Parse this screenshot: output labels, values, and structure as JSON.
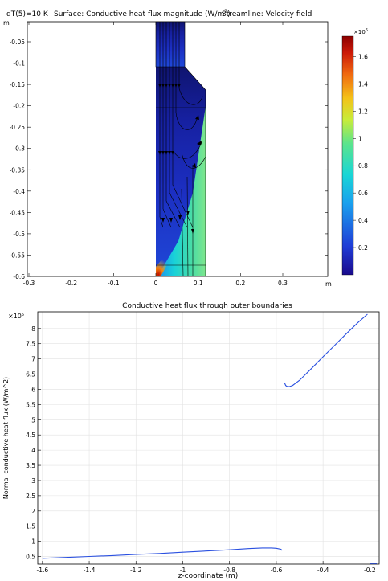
{
  "top_plot": {
    "header_left": "dT(5)=10 K",
    "header_surface": "Surface: Conductive heat flux magnitude (W/m",
    "header_sup": "2",
    "header_close": ")",
    "header_stream": "Streamline: Velocity field",
    "axis_unit_y": "m",
    "axis_unit_x": "m",
    "y_ticks": [
      "-0.05",
      "-0.1",
      "-0.15",
      "-0.2",
      "-0.25",
      "-0.3",
      "-0.35",
      "-0.4",
      "-0.45",
      "-0.5",
      "-0.55",
      "-0.6"
    ],
    "x_ticks": [
      "-0.3",
      "-0.2",
      "-0.1",
      "0",
      "0.1",
      "0.2",
      "0.3"
    ],
    "colorbar": {
      "multiplier": "×10",
      "multiplier_exp": "6",
      "ticks": [
        "1.6",
        "1.4",
        "1.2",
        "1",
        "0.8",
        "0.6",
        "0.4",
        "0.2"
      ],
      "range": [
        0,
        1.75
      ]
    },
    "colors": {
      "deep_blue": "#1a1aa8",
      "cyan": "#18d2d8",
      "green": "#6ee68a",
      "red": "#b00000"
    }
  },
  "chart_data": [
    {
      "type": "line",
      "title": "Conductive heat flux through outer boundaries",
      "xlabel": "z-coordinate (m)",
      "ylabel": "Normal conductive heat flux (W/m^2)",
      "y_multiplier": "×10",
      "y_multiplier_exp": "5",
      "xlim": [
        -1.62,
        -0.16
      ],
      "ylim": [
        0.25,
        8.55
      ],
      "grid": true,
      "x_ticks": [
        "-1.6",
        "-1.4",
        "-1.2",
        "-1",
        "-0.8",
        "-0.6",
        "-0.4",
        "-0.2"
      ],
      "y_ticks": [
        "0.5",
        "1",
        "1.5",
        "2",
        "2.5",
        "3",
        "3.5",
        "4",
        "4.5",
        "5",
        "5.5",
        "6",
        "6.5",
        "7",
        "7.5",
        "8"
      ],
      "line_color": "#2a50e0",
      "series": [
        {
          "x": [
            -1.6,
            -1.5,
            -1.4,
            -1.3,
            -1.2,
            -1.1,
            -1.0,
            -0.9,
            -0.8,
            -0.72,
            -0.66,
            -0.62,
            -0.6,
            -0.58,
            -0.575
          ],
          "y": [
            0.44,
            0.47,
            0.5,
            0.53,
            0.57,
            0.6,
            0.64,
            0.68,
            0.72,
            0.76,
            0.78,
            0.78,
            0.77,
            0.74,
            0.7
          ]
        },
        {
          "x": [
            -0.565,
            -0.56,
            -0.555,
            -0.545,
            -0.53,
            -0.5,
            -0.45,
            -0.4,
            -0.35,
            -0.3,
            -0.25,
            -0.21
          ],
          "y": [
            6.22,
            6.13,
            6.1,
            6.09,
            6.13,
            6.3,
            6.68,
            7.07,
            7.45,
            7.83,
            8.2,
            8.47
          ]
        },
        {
          "x": [
            -0.2,
            -0.17
          ],
          "y": [
            0.27,
            0.27
          ]
        }
      ]
    }
  ]
}
